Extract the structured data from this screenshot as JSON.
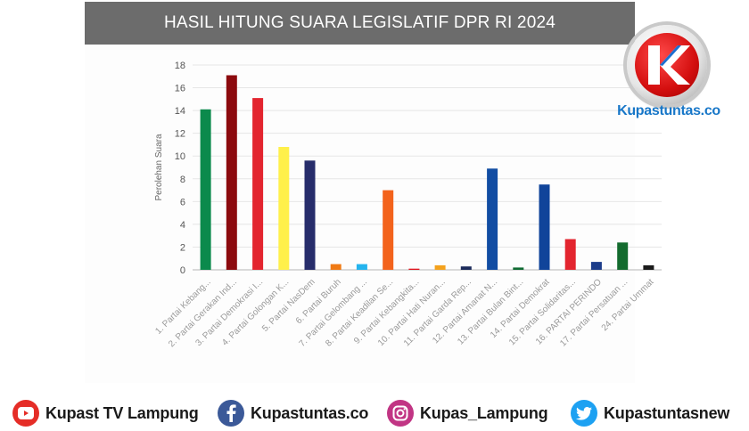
{
  "brand": {
    "name": "Kupastuntas.co",
    "logo_letter": "K",
    "color": "#1877c8"
  },
  "socials": [
    {
      "label": "Kupast TV Lampung",
      "icon": "youtube-icon",
      "color": "#e52d27"
    },
    {
      "label": "Kupastuntas.co",
      "icon": "facebook-icon",
      "color": "#3b5998"
    },
    {
      "label": "Kupas_Lampung",
      "icon": "instagram-icon",
      "color": "#c13584"
    },
    {
      "label": "Kupastuntasnew",
      "icon": "twitter-icon",
      "color": "#1da1f2"
    }
  ],
  "chart_data": {
    "type": "bar",
    "title": "HASIL HITUNG SUARA LEGISLATIF DPR RI 2024",
    "ylabel": "Perolehan Suara",
    "xlabel": "",
    "ylim": [
      0,
      18
    ],
    "yticks": [
      0,
      2,
      4,
      6,
      8,
      10,
      12,
      14,
      16,
      18
    ],
    "grid": true,
    "categories": [
      "1. Partai Kebang...",
      "2. Partai Gerakan Ind...",
      "3. Partai Demokrasi I...",
      "4. Partai Golongan K...",
      "5. Partai NasDem",
      "6. Partai Buruh",
      "7. Partai Gelombang ...",
      "8. Partai Keadilan Se...",
      "9. Partai Kebangkita...",
      "10. Partai Hati Nuran...",
      "11. Partai Garda Rep...",
      "12. Partai Amanat N...",
      "13. Partai Bulan Bint...",
      "14. Partai Demokrat",
      "15. Partai Solidaritas...",
      "16. PARTAI PERINDO",
      "17. Partai Persatuan ...",
      "24. Partai Ummat"
    ],
    "values": [
      14.1,
      17.1,
      15.1,
      10.8,
      9.6,
      0.5,
      0.5,
      7.0,
      0.1,
      0.4,
      0.3,
      8.9,
      0.2,
      7.5,
      2.7,
      0.7,
      2.4,
      0.4
    ],
    "colors": [
      "#0b8a4c",
      "#8c0a0e",
      "#e3252f",
      "#fff04a",
      "#272d6b",
      "#f07a14",
      "#24b4ee",
      "#f3631c",
      "#e0121c",
      "#f4a21d",
      "#1b2a5a",
      "#124da3",
      "#0f6b32",
      "#10449a",
      "#e3252f",
      "#1c3c8a",
      "#136b2e",
      "#1b1b1b"
    ]
  }
}
